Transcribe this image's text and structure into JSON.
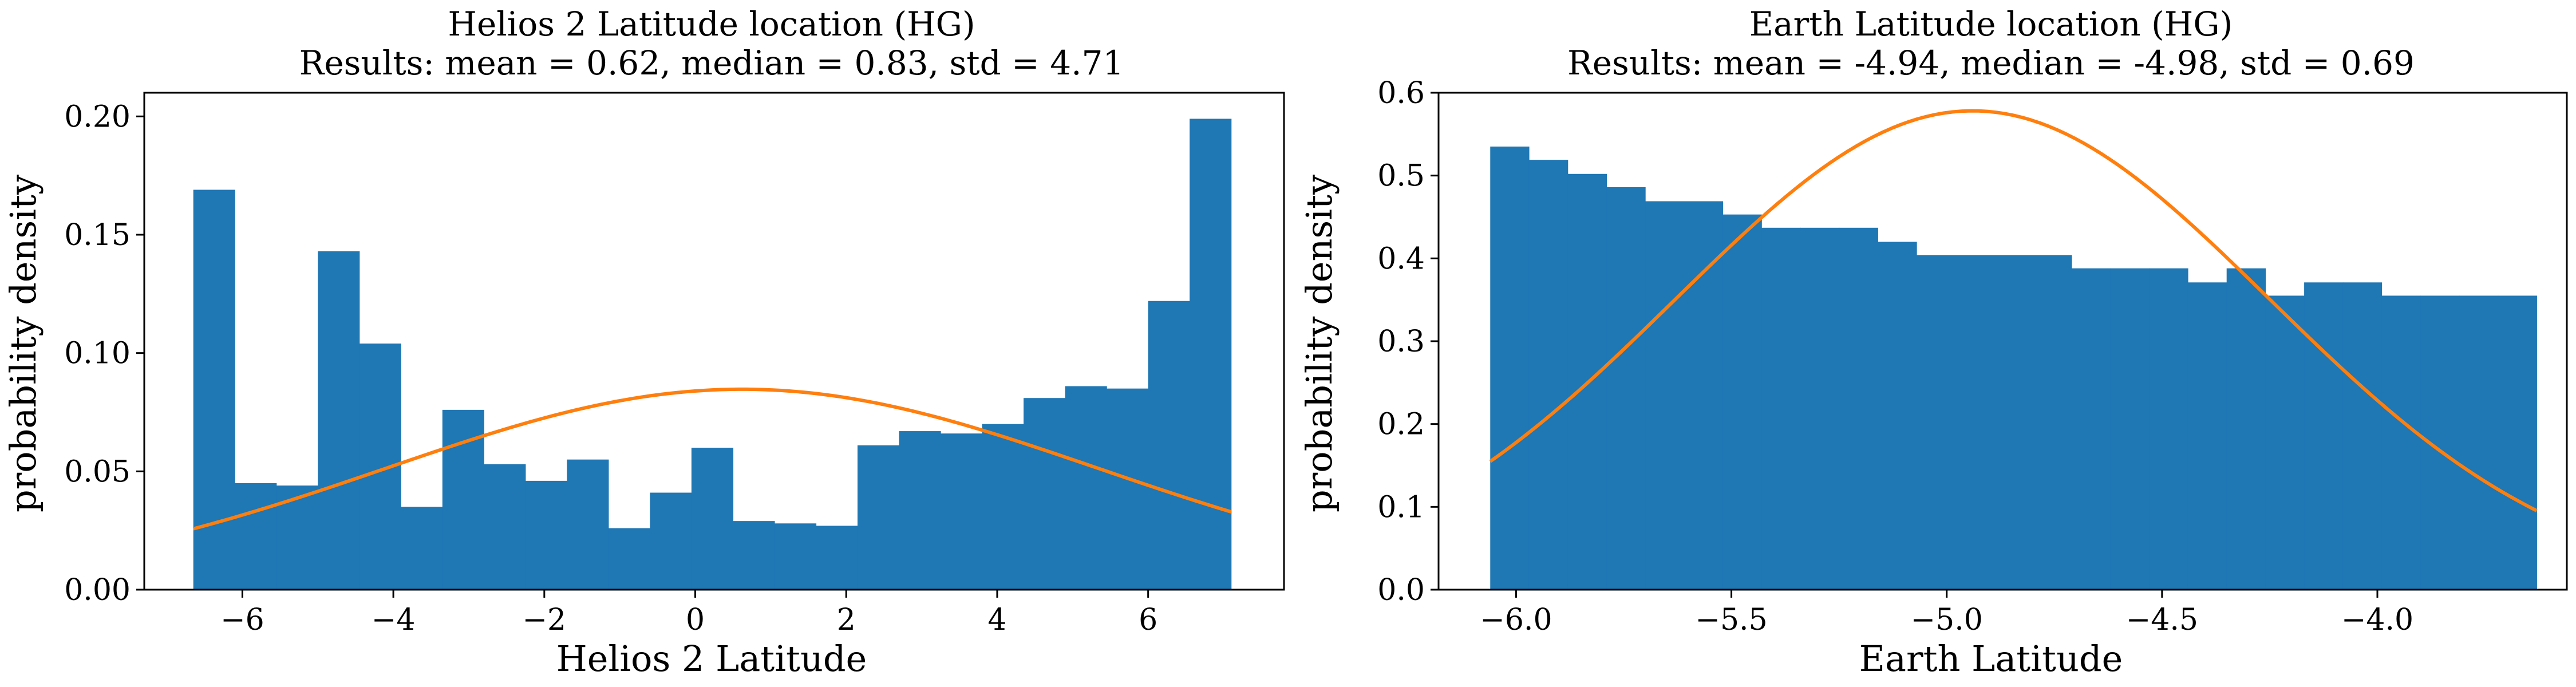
{
  "colors": {
    "bar": "#1f77b4",
    "curve": "#ff7f0e",
    "axes": "#000000",
    "background": "#ffffff"
  },
  "chart_data": [
    {
      "type": "bar",
      "title": "Helios 2 Latitude location (HG)",
      "subtitle": "Results: mean = 0.62, median = 0.83, std = 4.71",
      "xlabel": "Helios 2 Latitude",
      "ylabel": "probability density",
      "xlim": [
        -7.3,
        7.8
      ],
      "ylim": [
        0,
        0.21
      ],
      "xticks": [
        -6,
        -4,
        -2,
        0,
        2,
        4,
        6
      ],
      "xtick_labels": [
        "−6",
        "−4",
        "−2",
        "0",
        "2",
        "4",
        "6"
      ],
      "yticks": [
        0,
        0.05,
        0.1,
        0.15,
        0.2
      ],
      "ytick_labels": [
        "0.00",
        "0.05",
        "0.10",
        "0.15",
        "0.20"
      ],
      "grid": false,
      "legend": "none",
      "series": [
        {
          "kind": "histogram",
          "bin_edges": [
            -6.65,
            -6.1,
            -5.55,
            -5.0,
            -4.45,
            -3.9,
            -3.35,
            -2.8,
            -2.25,
            -1.7,
            -1.15,
            -0.6,
            -0.05,
            0.5,
            1.05,
            1.6,
            2.15,
            2.7,
            3.25,
            3.8,
            4.35,
            4.9,
            5.45,
            6.0,
            6.55,
            7.1
          ],
          "values": [
            0.169,
            0.045,
            0.044,
            0.143,
            0.104,
            0.035,
            0.076,
            0.053,
            0.046,
            0.055,
            0.026,
            0.041,
            0.06,
            0.029,
            0.028,
            0.027,
            0.061,
            0.067,
            0.066,
            0.07,
            0.081,
            0.086,
            0.085,
            0.122,
            0.199
          ]
        },
        {
          "kind": "normal-pdf-line",
          "mean": 0.62,
          "std": 4.71,
          "x_range": [
            -6.65,
            7.1
          ]
        }
      ]
    },
    {
      "type": "bar",
      "title": "Earth Latitude location (HG)",
      "subtitle": "Results: mean = -4.94, median = -4.98, std = 0.69",
      "xlabel": "Earth Latitude",
      "ylabel": "probability density",
      "xlim": [
        -6.18,
        -3.56
      ],
      "ylim": [
        0,
        0.6
      ],
      "xticks": [
        -6.0,
        -5.5,
        -5.0,
        -4.5,
        -4.0
      ],
      "xtick_labels": [
        "−6.0",
        "−5.5",
        "−5.0",
        "−4.5",
        "−4.0"
      ],
      "yticks": [
        0,
        0.1,
        0.2,
        0.3,
        0.4,
        0.5,
        0.6
      ],
      "ytick_labels": [
        "0.0",
        "0.1",
        "0.2",
        "0.3",
        "0.4",
        "0.5",
        "0.6"
      ],
      "grid": false,
      "legend": "none",
      "series": [
        {
          "kind": "histogram",
          "bin_edges": [
            -6.06,
            -5.97,
            -5.88,
            -5.79,
            -5.7,
            -5.61,
            -5.52,
            -5.43,
            -5.34,
            -5.25,
            -5.16,
            -5.07,
            -4.98,
            -4.89,
            -4.8,
            -4.71,
            -4.62,
            -4.53,
            -4.44,
            -4.35,
            -4.26,
            -4.17,
            -4.08,
            -3.99,
            -3.9,
            -3.81,
            -3.72,
            -3.63
          ],
          "values": [
            0.535,
            0.519,
            0.502,
            0.486,
            0.469,
            0.469,
            0.453,
            0.437,
            0.437,
            0.437,
            0.42,
            0.404,
            0.404,
            0.404,
            0.404,
            0.388,
            0.388,
            0.388,
            0.371,
            0.388,
            0.355,
            0.371,
            0.371,
            0.355,
            0.355,
            0.355,
            0.355
          ]
        },
        {
          "kind": "normal-pdf-line",
          "mean": -4.94,
          "std": 0.69,
          "x_range": [
            -6.06,
            -3.63
          ]
        }
      ]
    }
  ]
}
